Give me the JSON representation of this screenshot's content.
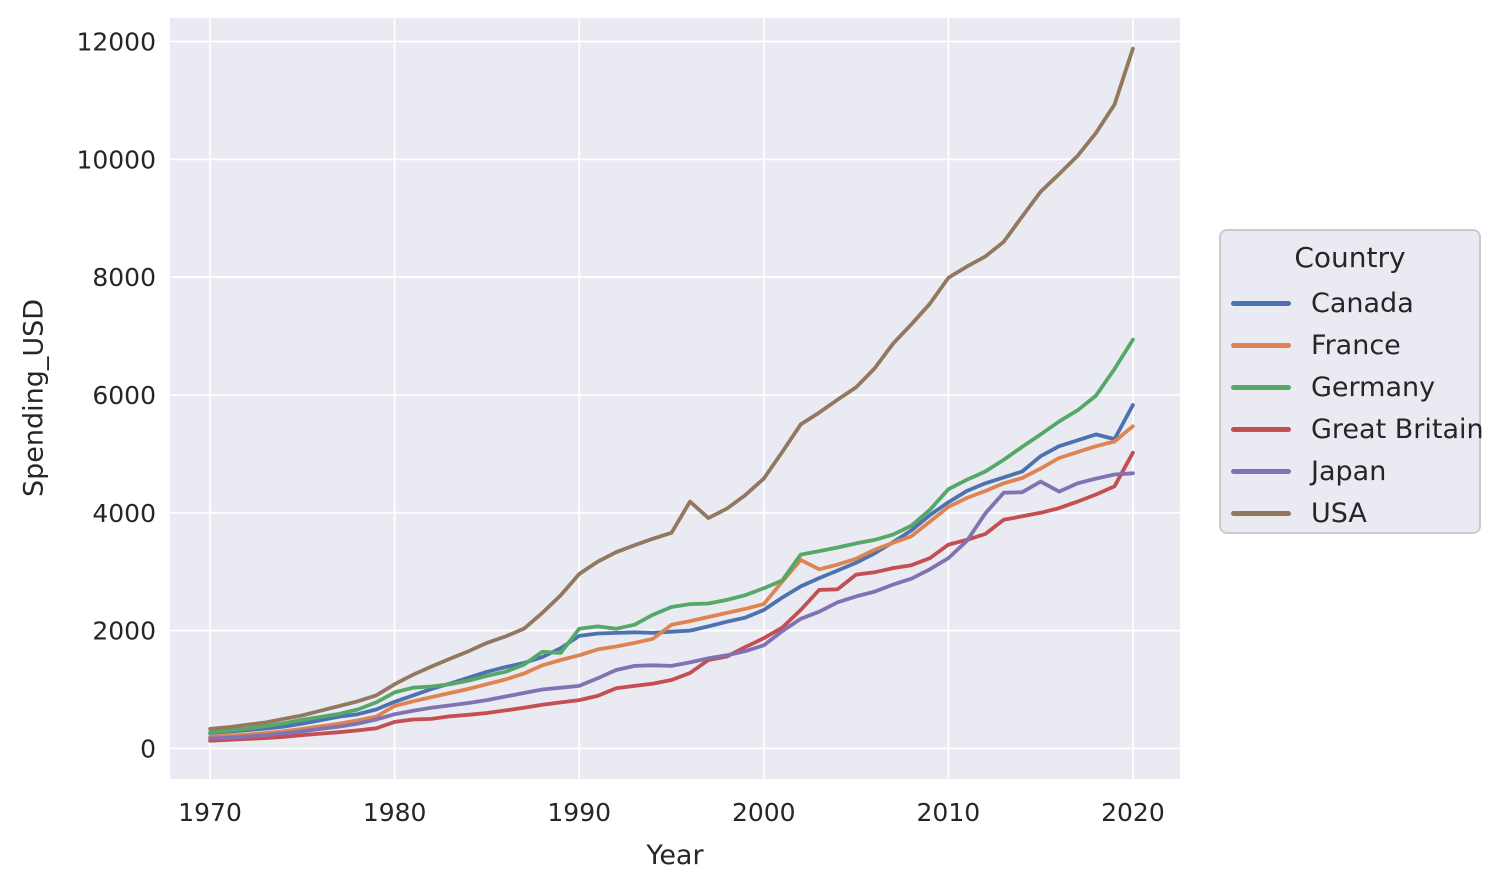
{
  "colors": {
    "figure_background": "#ffffff",
    "axes_background": "#eaeaf2",
    "grid_color": "#ffffff",
    "text_color": "#262626",
    "legend_background": "#eaeaf2",
    "legend_border": "#cacad2"
  },
  "legend": {
    "title": "Country",
    "position": "outside-right"
  },
  "chart_data": {
    "type": "line",
    "title": "",
    "xlabel": "Year",
    "ylabel": "Spending_USD",
    "grid": true,
    "x_range": [
      1967.83,
      2022.55
    ],
    "y_range": [
      -520,
      12400
    ],
    "x_ticks": [
      1970,
      1980,
      1990,
      2000,
      2010,
      2020
    ],
    "y_ticks": [
      0,
      2000,
      4000,
      6000,
      8000,
      10000,
      12000
    ],
    "x": [
      1970,
      1971,
      1972,
      1973,
      1974,
      1975,
      1976,
      1977,
      1978,
      1979,
      1980,
      1981,
      1982,
      1983,
      1984,
      1985,
      1986,
      1987,
      1988,
      1989,
      1990,
      1991,
      1992,
      1993,
      1994,
      1995,
      1996,
      1997,
      1998,
      1999,
      2000,
      2001,
      2002,
      2003,
      2004,
      2005,
      2006,
      2007,
      2008,
      2009,
      2010,
      2011,
      2012,
      2013,
      2014,
      2015,
      2016,
      2017,
      2018,
      2019,
      2020
    ],
    "series": [
      {
        "name": "Canada",
        "color": "#4c72b0",
        "values": [
          260,
          285,
          310,
          335,
          370,
          420,
          480,
          540,
          580,
          660,
          790,
          900,
          1010,
          1100,
          1200,
          1300,
          1380,
          1450,
          1550,
          1700,
          1910,
          1950,
          1960,
          1970,
          1960,
          1980,
          2000,
          2070,
          2150,
          2220,
          2350,
          2560,
          2750,
          2890,
          3020,
          3150,
          3310,
          3500,
          3700,
          3960,
          4180,
          4370,
          4500,
          4600,
          4700,
          4960,
          5130,
          5230,
          5330,
          5250,
          5830
        ]
      },
      {
        "name": "France",
        "color": "#dd8452",
        "values": [
          195,
          215,
          235,
          260,
          290,
          330,
          375,
          420,
          475,
          540,
          720,
          800,
          870,
          940,
          1010,
          1090,
          1170,
          1270,
          1410,
          1500,
          1580,
          1680,
          1730,
          1790,
          1860,
          2100,
          2160,
          2230,
          2300,
          2370,
          2450,
          2830,
          3200,
          3040,
          3120,
          3220,
          3370,
          3490,
          3600,
          3850,
          4100,
          4250,
          4370,
          4500,
          4590,
          4750,
          4930,
          5030,
          5130,
          5210,
          5470
        ]
      },
      {
        "name": "Germany",
        "color": "#55a868",
        "values": [
          270,
          300,
          335,
          375,
          425,
          485,
          535,
          585,
          660,
          780,
          950,
          1030,
          1050,
          1090,
          1150,
          1230,
          1300,
          1420,
          1640,
          1620,
          2030,
          2070,
          2030,
          2100,
          2270,
          2400,
          2450,
          2460,
          2520,
          2600,
          2720,
          2850,
          3290,
          3350,
          3410,
          3480,
          3540,
          3630,
          3780,
          4050,
          4400,
          4560,
          4700,
          4900,
          5120,
          5330,
          5550,
          5740,
          5990,
          6440,
          6940
        ]
      },
      {
        "name": "Great Britain",
        "color": "#c44e52",
        "values": [
          130,
          145,
          160,
          175,
          195,
          225,
          250,
          275,
          305,
          340,
          450,
          490,
          500,
          545,
          570,
          600,
          645,
          690,
          740,
          780,
          820,
          890,
          1020,
          1060,
          1100,
          1160,
          1280,
          1500,
          1560,
          1720,
          1870,
          2050,
          2350,
          2690,
          2700,
          2950,
          2990,
          3060,
          3110,
          3230,
          3460,
          3540,
          3640,
          3880,
          3940,
          4000,
          4080,
          4190,
          4310,
          4450,
          5020
        ]
      },
      {
        "name": "Japan",
        "color": "#8172b3",
        "values": [
          165,
          180,
          200,
          225,
          255,
          290,
          330,
          370,
          420,
          490,
          580,
          640,
          690,
          730,
          770,
          820,
          880,
          940,
          1000,
          1030,
          1060,
          1190,
          1330,
          1400,
          1410,
          1400,
          1460,
          1530,
          1580,
          1650,
          1750,
          1990,
          2200,
          2320,
          2480,
          2580,
          2660,
          2780,
          2880,
          3040,
          3230,
          3520,
          3990,
          4340,
          4350,
          4530,
          4360,
          4500,
          4580,
          4650,
          4670
        ]
      },
      {
        "name": "USA",
        "color": "#937860",
        "values": [
          330,
          360,
          400,
          440,
          500,
          560,
          640,
          720,
          800,
          900,
          1090,
          1250,
          1390,
          1520,
          1650,
          1790,
          1900,
          2030,
          2300,
          2600,
          2960,
          3170,
          3330,
          3450,
          3560,
          3660,
          4190,
          3910,
          4070,
          4300,
          4580,
          5030,
          5500,
          5700,
          5920,
          6130,
          6450,
          6870,
          7200,
          7550,
          7990,
          8180,
          8350,
          8600,
          9030,
          9450,
          9750,
          10060,
          10450,
          10930,
          11880
        ]
      }
    ]
  }
}
